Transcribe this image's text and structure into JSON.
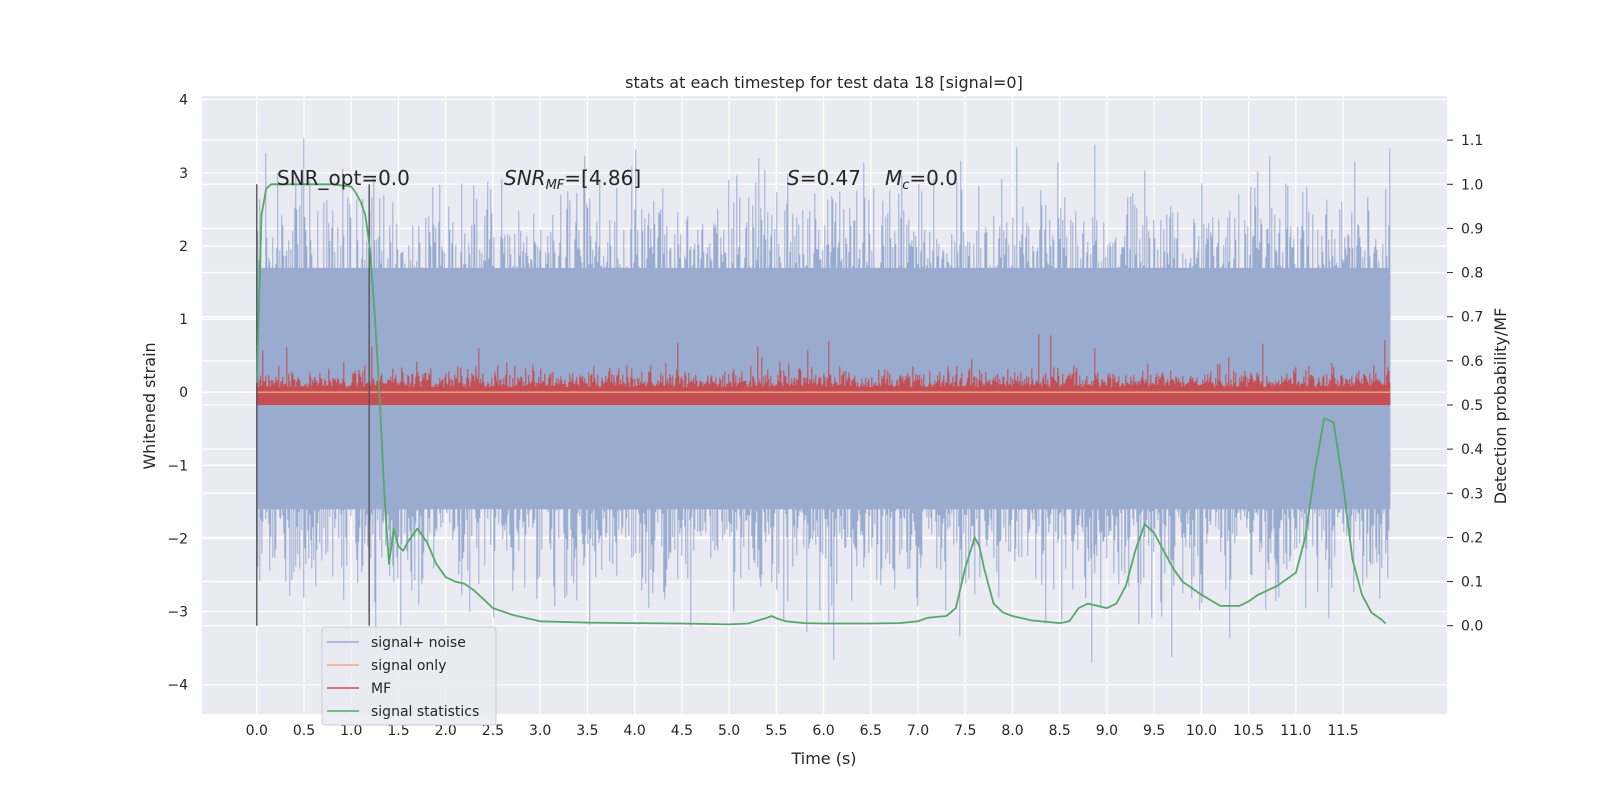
{
  "chart_data": {
    "type": "line",
    "title": "stats at each timestep for test data 18 [signal=0]",
    "xlabel": "Time (s)",
    "ylabel": "Whitened strain",
    "y2label": "Detection probability/MF",
    "xlim": [
      -0.58,
      12.6
    ],
    "ylim": [
      -4.4,
      4.05
    ],
    "y2lim": [
      -0.2,
      1.2
    ],
    "x_ticks": [
      "0.0",
      "0.5",
      "1.0",
      "1.5",
      "2.0",
      "2.5",
      "3.0",
      "3.5",
      "4.0",
      "4.5",
      "5.0",
      "5.5",
      "6.0",
      "6.5",
      "7.0",
      "7.5",
      "8.0",
      "8.5",
      "9.0",
      "9.5",
      "10.0",
      "10.5",
      "11.0",
      "11.5"
    ],
    "y_ticks": [
      "4",
      "3",
      "2",
      "1",
      "0",
      "−1",
      "−2",
      "−3",
      "−4"
    ],
    "y2_ticks": [
      "1.1",
      "1.0",
      "0.9",
      "0.8",
      "0.7",
      "0.6",
      "0.5",
      "0.4",
      "0.3",
      "0.2",
      "0.1",
      "0.0"
    ],
    "grid": true,
    "legend_position": "lower-left",
    "colors": {
      "background": "#eaeaf2",
      "grid": "#ffffff",
      "noise": "#9aabd0",
      "signal_only": "#e8a88a",
      "mf": "#c44e52",
      "stats": "#55a868",
      "vline": "#555555"
    },
    "annotations": {
      "snr_opt": "SNR_opt=0.0",
      "snr_mf_main": "SNR",
      "snr_mf_sub": "MF",
      "snr_mf_value": "=[4.86]",
      "s_main": "S",
      "s_value": "=0.47",
      "mc_main": "M",
      "mc_sub": "c",
      "mc_value": "=0.0"
    },
    "window_start_s": 0.0,
    "window_end_s": 1.19,
    "series": [
      {
        "name": "signal+ noise",
        "kind": "noise",
        "x_range": [
          0.0,
          12.0
        ],
        "envelope_y": [
          -2.0,
          2.3
        ]
      },
      {
        "name": "signal only",
        "kind": "flat",
        "x_range": [
          0.0,
          12.0
        ],
        "value": 0.0
      },
      {
        "name": "MF",
        "kind": "mf",
        "axis": "right",
        "x_range": [
          0.0,
          12.0
        ],
        "range": [
          0.5,
          0.6
        ],
        "max_y": 0.7
      },
      {
        "name": "signal statistics",
        "kind": "line",
        "axis": "right",
        "x": [
          0.0,
          0.05,
          0.1,
          0.15,
          0.2,
          0.3,
          0.5,
          0.8,
          1.0,
          1.05,
          1.1,
          1.15,
          1.2,
          1.25,
          1.3,
          1.35,
          1.4,
          1.45,
          1.5,
          1.55,
          1.6,
          1.7,
          1.8,
          1.9,
          2.0,
          2.1,
          2.2,
          2.3,
          2.4,
          2.5,
          2.7,
          3.0,
          3.5,
          4.0,
          4.5,
          5.0,
          5.2,
          5.4,
          5.45,
          5.5,
          5.6,
          5.8,
          6.0,
          6.5,
          6.8,
          7.0,
          7.1,
          7.2,
          7.3,
          7.4,
          7.5,
          7.6,
          7.65,
          7.7,
          7.8,
          7.9,
          8.0,
          8.2,
          8.5,
          8.6,
          8.7,
          8.8,
          8.9,
          9.0,
          9.1,
          9.2,
          9.3,
          9.4,
          9.5,
          9.6,
          9.7,
          9.8,
          10.0,
          10.2,
          10.4,
          10.5,
          10.6,
          10.8,
          11.0,
          11.1,
          11.2,
          11.3,
          11.4,
          11.5,
          11.6,
          11.7,
          11.8,
          11.9,
          11.95
        ],
        "y": [
          0.55,
          0.93,
          0.99,
          1.0,
          1.0,
          1.0,
          1.0,
          1.0,
          0.995,
          0.98,
          0.96,
          0.93,
          0.85,
          0.7,
          0.52,
          0.3,
          0.14,
          0.22,
          0.18,
          0.17,
          0.19,
          0.22,
          0.19,
          0.14,
          0.11,
          0.1,
          0.095,
          0.08,
          0.06,
          0.04,
          0.025,
          0.01,
          0.007,
          0.006,
          0.005,
          0.003,
          0.005,
          0.018,
          0.022,
          0.017,
          0.01,
          0.006,
          0.005,
          0.005,
          0.006,
          0.01,
          0.018,
          0.02,
          0.022,
          0.04,
          0.13,
          0.2,
          0.18,
          0.13,
          0.05,
          0.03,
          0.022,
          0.012,
          0.006,
          0.01,
          0.04,
          0.05,
          0.045,
          0.04,
          0.05,
          0.09,
          0.17,
          0.23,
          0.21,
          0.17,
          0.13,
          0.1,
          0.07,
          0.045,
          0.045,
          0.055,
          0.07,
          0.09,
          0.12,
          0.2,
          0.35,
          0.47,
          0.46,
          0.32,
          0.15,
          0.07,
          0.03,
          0.015,
          0.005
        ]
      }
    ]
  }
}
